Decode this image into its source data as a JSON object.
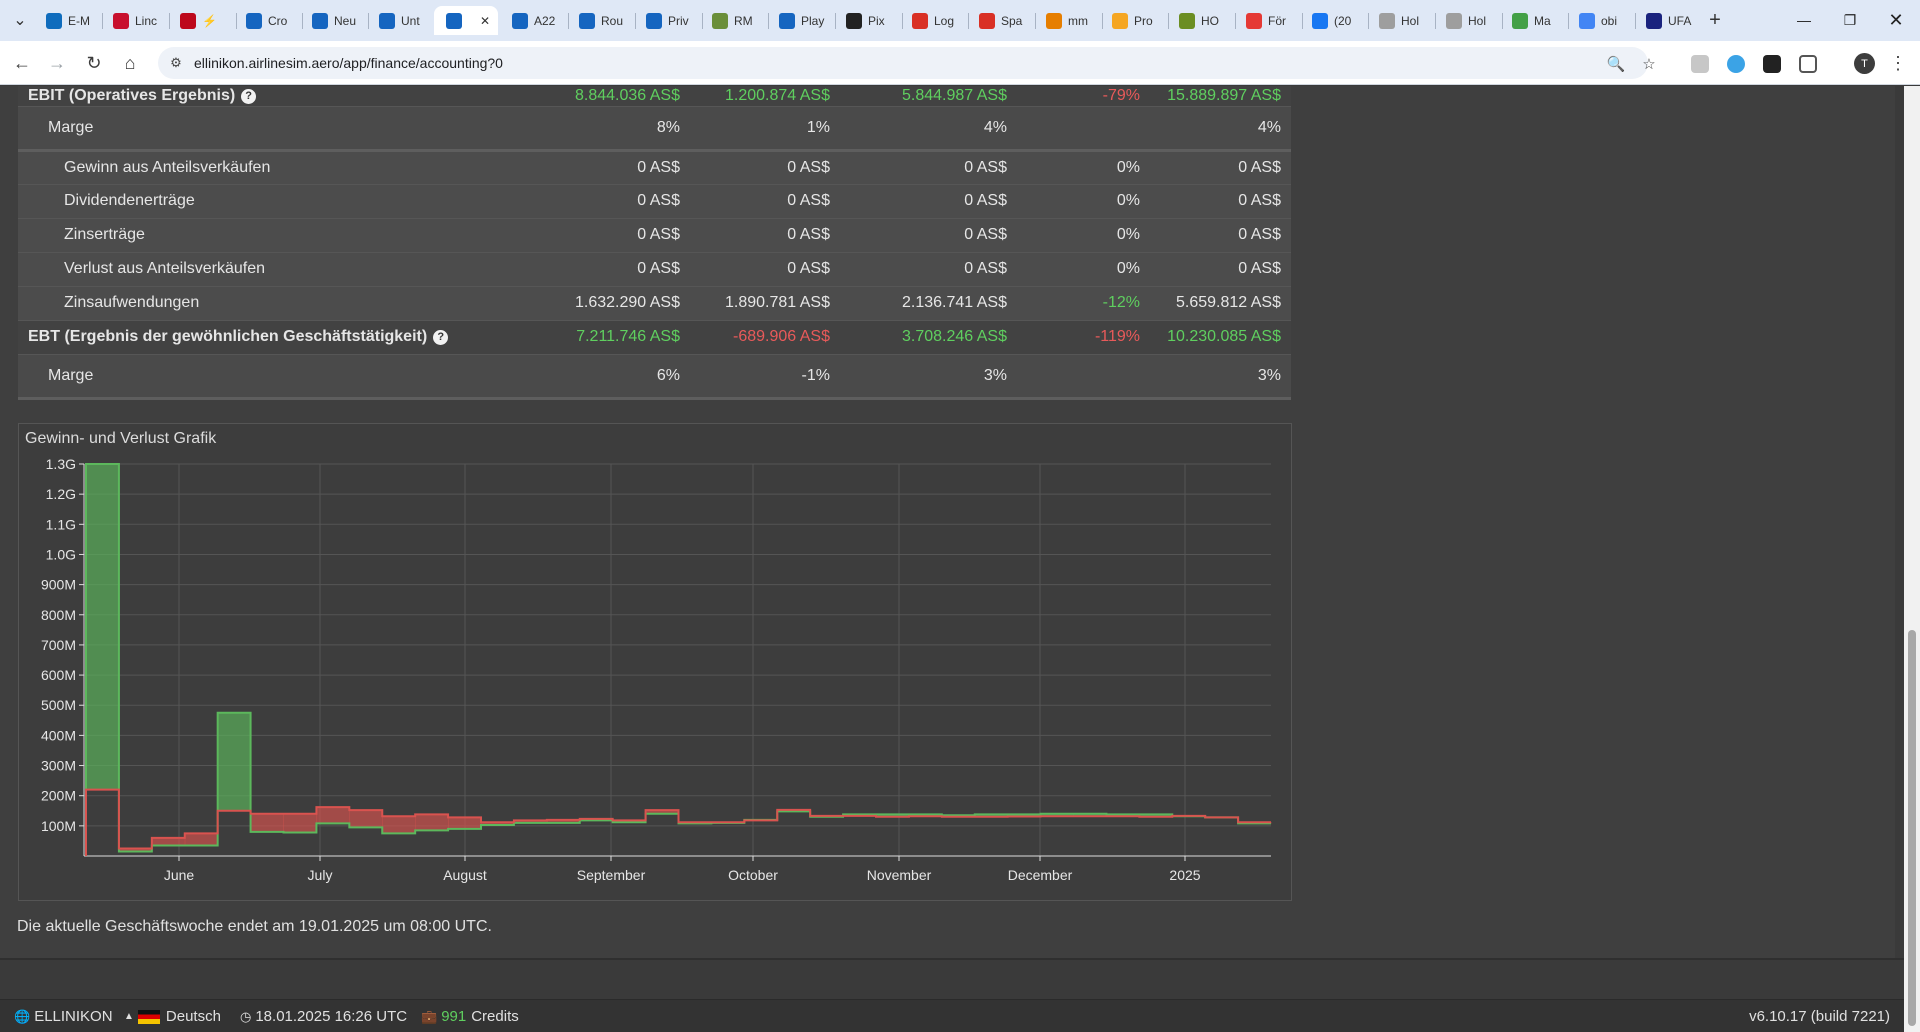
{
  "browser": {
    "tabs": [
      {
        "label": "E-M",
        "color": "#0f6cbd"
      },
      {
        "label": "Linc",
        "color": "#c8102e"
      },
      {
        "label": "⚡",
        "color": "#bd081c"
      },
      {
        "label": "Cro",
        "color": "#1565c0"
      },
      {
        "label": "Neu",
        "color": "#1565c0"
      },
      {
        "label": "Unt",
        "color": "#1565c0"
      },
      {
        "label": "",
        "color": "#1565c0"
      },
      {
        "label": "A22",
        "color": "#1565c0"
      },
      {
        "label": "Rou",
        "color": "#1565c0"
      },
      {
        "label": "Priv",
        "color": "#1565c0"
      },
      {
        "label": "RM",
        "color": "#6a8f3a"
      },
      {
        "label": "Play",
        "color": "#1565c0"
      },
      {
        "label": "Pix",
        "color": "#222222"
      },
      {
        "label": "Log",
        "color": "#d93025"
      },
      {
        "label": "Spa",
        "color": "#d93025"
      },
      {
        "label": "mm",
        "color": "#e67e00"
      },
      {
        "label": "Pro",
        "color": "#f5a623"
      },
      {
        "label": "HO",
        "color": "#6b8e23"
      },
      {
        "label": "För",
        "color": "#e53935"
      },
      {
        "label": "(20",
        "color": "#1877f2"
      },
      {
        "label": "Hol",
        "color": "#9e9e9e"
      },
      {
        "label": "Hol",
        "color": "#9e9e9e"
      },
      {
        "label": "Ma",
        "color": "#43a047"
      },
      {
        "label": "obi",
        "color": "#4285f4"
      },
      {
        "label": "UFA",
        "color": "#1a237e"
      }
    ],
    "url": "ellinikon.airlinesim.aero/app/finance/accounting?0",
    "profile_initial": "T"
  },
  "accounting": {
    "rows": [
      {
        "label": "EBIT (Operatives Ergebnis)",
        "help": true,
        "type": "bold",
        "values": [
          "8.844.036 AS$",
          "1.200.874 AS$",
          "5.844.987 AS$",
          "-79%",
          "15.889.897 AS$"
        ],
        "colors": [
          "pos",
          "pos",
          "pos",
          "neg",
          "pos"
        ]
      },
      {
        "label": "Marge",
        "help": false,
        "type": "sub thickbottom",
        "values": [
          "8%",
          "1%",
          "4%",
          "",
          "4%"
        ],
        "colors": [
          "",
          "",
          "",
          "",
          ""
        ]
      },
      {
        "label": "Gewinn aus Anteilsverkäufen",
        "help": false,
        "type": "detail",
        "values": [
          "0 AS$",
          "0 AS$",
          "0 AS$",
          "0%",
          "0 AS$"
        ],
        "colors": [
          "",
          "",
          "",
          "",
          ""
        ]
      },
      {
        "label": "Dividendenerträge",
        "help": false,
        "type": "detail",
        "values": [
          "0 AS$",
          "0 AS$",
          "0 AS$",
          "0%",
          "0 AS$"
        ],
        "colors": [
          "",
          "",
          "",
          "",
          ""
        ]
      },
      {
        "label": "Zinserträge",
        "help": false,
        "type": "detail",
        "values": [
          "0 AS$",
          "0 AS$",
          "0 AS$",
          "0%",
          "0 AS$"
        ],
        "colors": [
          "",
          "",
          "",
          "",
          ""
        ]
      },
      {
        "label": "Verlust aus Anteilsverkäufen",
        "help": false,
        "type": "detail",
        "values": [
          "0 AS$",
          "0 AS$",
          "0 AS$",
          "0%",
          "0 AS$"
        ],
        "colors": [
          "",
          "",
          "",
          "",
          ""
        ]
      },
      {
        "label": "Zinsaufwendungen",
        "help": false,
        "type": "detail",
        "values": [
          "1.632.290 AS$",
          "1.890.781 AS$",
          "2.136.741 AS$",
          "-12%",
          "5.659.812 AS$"
        ],
        "colors": [
          "",
          "",
          "",
          "pos",
          ""
        ]
      },
      {
        "label": "EBT (Ergebnis der gewöhnlichen Geschäftstätigkeit)",
        "help": true,
        "type": "bold",
        "values": [
          "7.211.746 AS$",
          "-689.906 AS$",
          "3.708.246 AS$",
          "-119%",
          "10.230.085 AS$"
        ],
        "colors": [
          "pos",
          "neg",
          "pos",
          "neg",
          "pos"
        ]
      },
      {
        "label": "Marge",
        "help": false,
        "type": "sub thickbottom",
        "values": [
          "6%",
          "-1%",
          "3%",
          "",
          "3%"
        ],
        "colors": [
          "",
          "",
          "",
          "",
          ""
        ]
      }
    ]
  },
  "chart_title": "Gewinn- und Verlust Grafik",
  "chart_data": {
    "type": "area",
    "ylabels": [
      "100M",
      "200M",
      "300M",
      "400M",
      "500M",
      "600M",
      "700M",
      "800M",
      "900M",
      "1.0G",
      "1.1G",
      "1.2G",
      "1.3G"
    ],
    "xlabels": [
      "June",
      "July",
      "August",
      "September",
      "October",
      "November",
      "December",
      "2025"
    ],
    "ylim": [
      0,
      1300000000
    ],
    "grid": true,
    "series": [
      {
        "color": "#5cb85c",
        "values": [
          1300,
          15,
          35,
          35,
          475,
          80,
          78,
          108,
          95,
          75,
          85,
          90,
          103,
          110,
          110,
          118,
          112,
          140,
          108,
          110,
          120,
          148,
          130,
          138,
          138,
          138,
          135,
          138,
          138,
          140,
          140,
          138,
          138,
          132,
          128,
          108
        ]
      },
      {
        "color": "#d9534f",
        "values": [
          220,
          25,
          60,
          75,
          150,
          140,
          140,
          162,
          152,
          132,
          138,
          128,
          112,
          118,
          120,
          123,
          118,
          152,
          112,
          112,
          118,
          153,
          133,
          133,
          130,
          132,
          130,
          130,
          131,
          132,
          132,
          132,
          130,
          133,
          128,
          112
        ]
      }
    ],
    "value_unit": "M"
  },
  "footnote": "Die aktuelle Geschäftswoche endet am 19.01.2025 um 08:00 UTC.",
  "status": {
    "airline": "ELLINIKON",
    "language": "Deutsch",
    "datetime": "18.01.2025 16:26 UTC",
    "credits_value": "991",
    "credits_label": "Credits",
    "version": "v6.10.17 (build 7221)"
  }
}
